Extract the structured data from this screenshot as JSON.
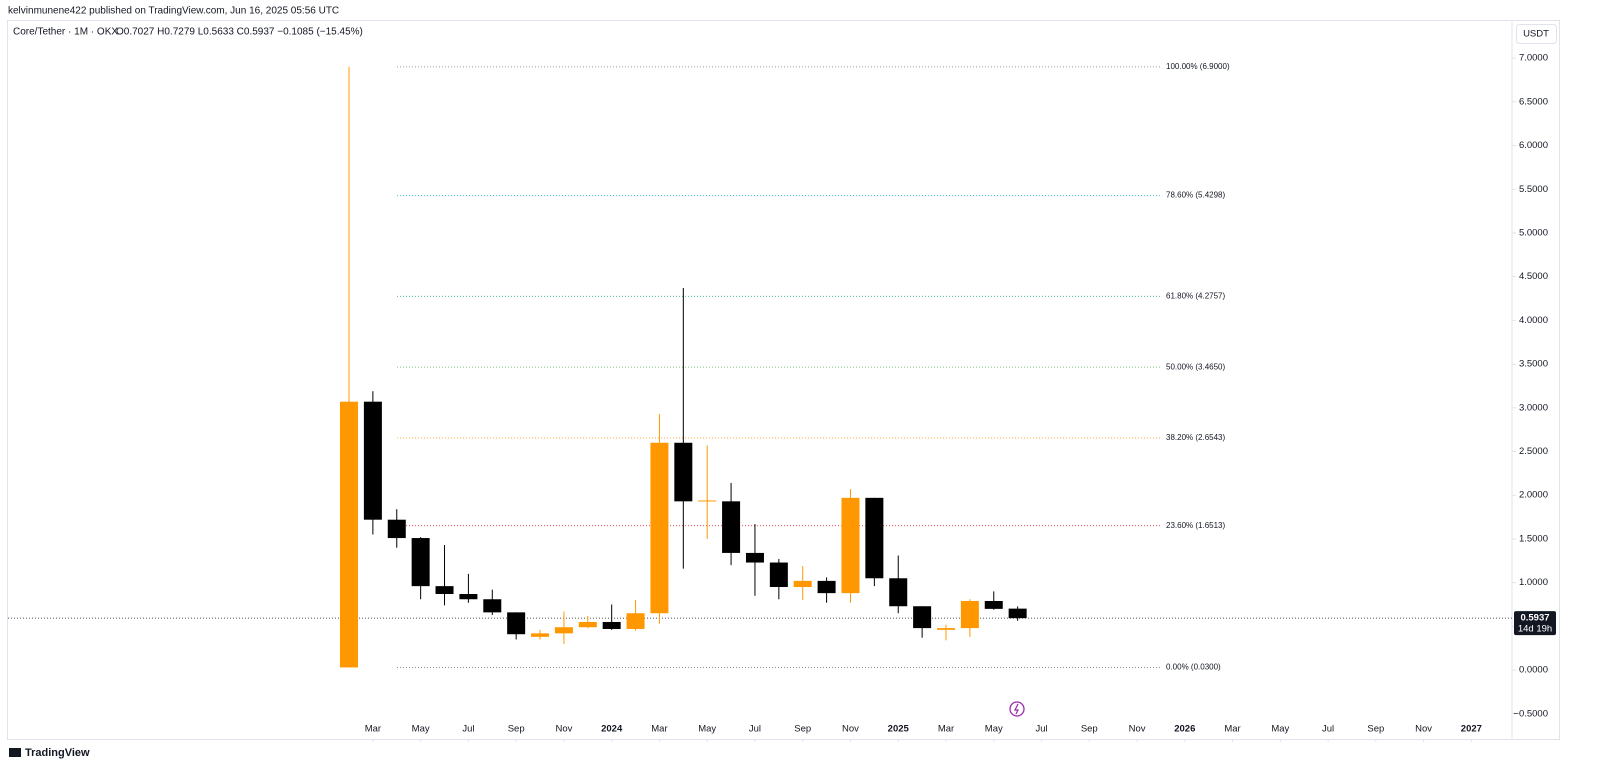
{
  "header": {
    "published": "kelvinmunene422 published on TradingView.com, Jun 16, 2025 05:56 UTC",
    "symbol": "Core/Tether · 1M · OKX",
    "ohlc": "O0.7027 H0.7279 L0.5633 C0.5937 −0.1085 (−15.45%)",
    "currency": "USDT",
    "logo": "TradingView"
  },
  "chart_data": {
    "type": "candlestick",
    "x": [
      "2023-02",
      "2023-03",
      "2023-04",
      "2023-05",
      "2023-06",
      "2023-07",
      "2023-08",
      "2023-09",
      "2023-10",
      "2023-11",
      "2023-12",
      "2024-01",
      "2024-02",
      "2024-03",
      "2024-04",
      "2024-05",
      "2024-06",
      "2024-07",
      "2024-08",
      "2024-09",
      "2024-10",
      "2024-11",
      "2024-12",
      "2025-01",
      "2025-02",
      "2025-03",
      "2025-04",
      "2025-05",
      "2025-06"
    ],
    "open": [
      0.03,
      3.07,
      1.72,
      1.51,
      0.96,
      0.87,
      0.81,
      0.66,
      0.38,
      0.42,
      0.49,
      0.55,
      0.47,
      0.65,
      2.6,
      1.93,
      1.93,
      1.34,
      1.23,
      0.95,
      1.02,
      0.88,
      1.97,
      1.05,
      0.73,
      0.46,
      0.48,
      0.79,
      0.7027
    ],
    "high": [
      6.9,
      3.19,
      1.84,
      1.52,
      1.43,
      1.1,
      0.92,
      0.66,
      0.46,
      0.67,
      0.62,
      0.75,
      0.8,
      2.93,
      4.37,
      2.57,
      2.14,
      1.67,
      1.27,
      1.19,
      1.06,
      2.07,
      1.97,
      1.31,
      0.73,
      0.52,
      0.81,
      0.9,
      0.7279
    ],
    "low": [
      0.03,
      1.55,
      1.4,
      0.81,
      0.74,
      0.77,
      0.63,
      0.35,
      0.35,
      0.3,
      0.48,
      0.46,
      0.45,
      0.53,
      1.16,
      1.5,
      1.2,
      0.85,
      0.81,
      0.8,
      0.77,
      0.77,
      0.96,
      0.65,
      0.37,
      0.34,
      0.38,
      0.69,
      0.5633
    ],
    "close": [
      3.07,
      1.72,
      1.51,
      0.96,
      0.87,
      0.81,
      0.66,
      0.41,
      0.42,
      0.49,
      0.55,
      0.47,
      0.65,
      2.6,
      1.93,
      1.94,
      1.34,
      1.23,
      0.95,
      1.02,
      0.88,
      1.97,
      1.05,
      0.73,
      0.48,
      0.48,
      0.79,
      0.7,
      0.5937
    ],
    "up_color": "#ff9800",
    "down_color": "#000000",
    "ylim": [
      -0.8,
      7.15
    ],
    "yticks": [
      {
        "value": -0.5,
        "label": "−0.5000"
      },
      {
        "value": 0,
        "label": "0.0000"
      },
      {
        "value": 0.5,
        "label": "0.5000"
      },
      {
        "value": 1,
        "label": "1.0000"
      },
      {
        "value": 1.5,
        "label": "1.5000"
      },
      {
        "value": 2,
        "label": "2.0000"
      },
      {
        "value": 2.5,
        "label": "2.5000"
      },
      {
        "value": 3,
        "label": "3.0000"
      },
      {
        "value": 3.5,
        "label": "3.5000"
      },
      {
        "value": 4,
        "label": "4.0000"
      },
      {
        "value": 4.5,
        "label": "4.5000"
      },
      {
        "value": 5,
        "label": "5.0000"
      },
      {
        "value": 5.5,
        "label": "5.5000"
      },
      {
        "value": 6,
        "label": "6.0000"
      },
      {
        "value": 6.5,
        "label": "6.5000"
      },
      {
        "value": 7,
        "label": "7.0000"
      }
    ],
    "xticks": [
      {
        "value": "2023-03",
        "label": "Mar"
      },
      {
        "value": "2023-05",
        "label": "May"
      },
      {
        "value": "2023-07",
        "label": "Jul"
      },
      {
        "value": "2023-09",
        "label": "Sep"
      },
      {
        "value": "2023-11",
        "label": "Nov"
      },
      {
        "value": "2024-01",
        "label": "2024"
      },
      {
        "value": "2024-03",
        "label": "Mar"
      },
      {
        "value": "2024-05",
        "label": "May"
      },
      {
        "value": "2024-07",
        "label": "Jul"
      },
      {
        "value": "2024-09",
        "label": "Sep"
      },
      {
        "value": "2024-11",
        "label": "Nov"
      },
      {
        "value": "2025-01",
        "label": "2025"
      },
      {
        "value": "2025-03",
        "label": "Mar"
      },
      {
        "value": "2025-05",
        "label": "May"
      },
      {
        "value": "2025-07",
        "label": "Jul"
      },
      {
        "value": "2025-09",
        "label": "Sep"
      },
      {
        "value": "2025-11",
        "label": "Nov"
      },
      {
        "value": "2026-01",
        "label": "2026"
      },
      {
        "value": "2026-03",
        "label": "Mar"
      },
      {
        "value": "2026-05",
        "label": "May"
      },
      {
        "value": "2026-07",
        "label": "Jul"
      },
      {
        "value": "2026-09",
        "label": "Sep"
      },
      {
        "value": "2026-11",
        "label": "Nov"
      },
      {
        "value": "2027-01",
        "label": "2027"
      }
    ],
    "fib_levels": [
      {
        "value": 6.9,
        "label": "100.00% (6.9000)",
        "color": "#787b86"
      },
      {
        "value": 5.4298,
        "label": "78.60% (5.4298)",
        "color": "#00bcd4"
      },
      {
        "value": 4.2757,
        "label": "61.80% (4.2757)",
        "color": "#089981"
      },
      {
        "value": 3.465,
        "label": "50.00% (3.4650)",
        "color": "#4caf50"
      },
      {
        "value": 2.6543,
        "label": "38.20% (2.6543)",
        "color": "#ff9800"
      },
      {
        "value": 1.6513,
        "label": "23.60% (1.6513)",
        "color": "#f23645"
      },
      {
        "value": 0.03,
        "label": "0.00% (0.0300)",
        "color": "#787b86"
      }
    ],
    "price_line": {
      "value": 0.5937,
      "label": "0.5937",
      "countdown": "14d 19h"
    }
  }
}
